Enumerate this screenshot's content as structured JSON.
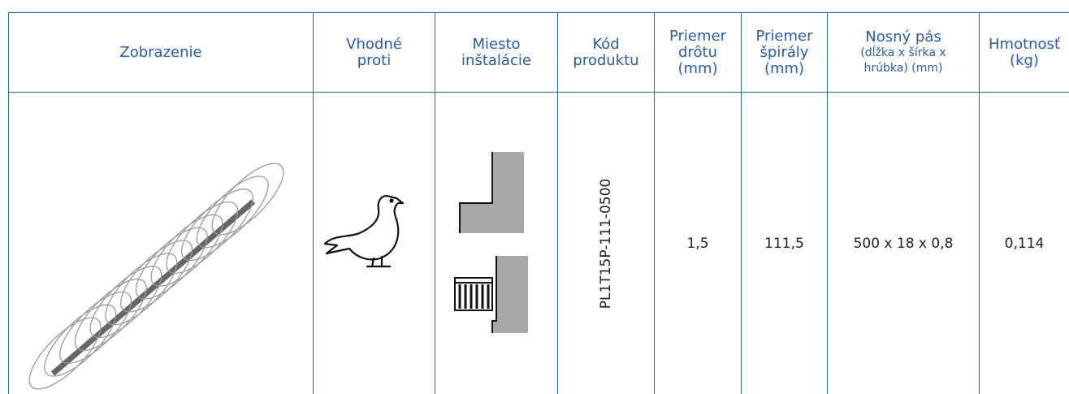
{
  "table": {
    "header": [
      [
        "Zobrazenie"
      ],
      [
        "Vhodné",
        "proti"
      ],
      [
        "Miesto",
        "inštalácie"
      ],
      [
        "Kód",
        "produktu"
      ],
      [
        "Priemer",
        "drôtu",
        "(mm)"
      ],
      [
        "Priemer",
        "špirály",
        "(mm)"
      ],
      [
        "Nosný pás",
        "(dĺžka x šírka x",
        "hrúbka) (mm)"
      ],
      [
        "Hmotnosť",
        "(kg)"
      ]
    ],
    "rows": [
      [
        "PL1T15P-111-0500",
        "1,5",
        "111,5",
        "500 x 18 x 0,8",
        "0,114"
      ]
    ]
  }
}
